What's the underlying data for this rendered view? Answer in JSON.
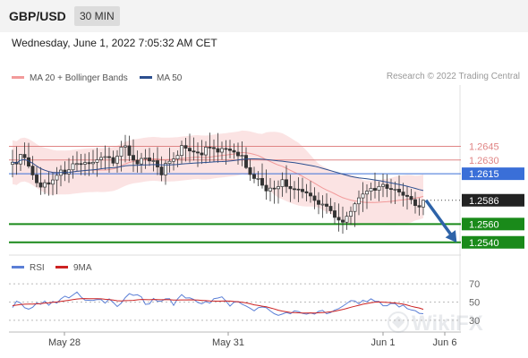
{
  "header": {
    "pair": "GBP/USD",
    "timeframe": "30 MIN",
    "datetime": "Wednesday, June 1, 2022 7:05:32 AM CET",
    "credit": "Research © 2022 Trading Central"
  },
  "colors": {
    "bollinger": "#f29a9a",
    "ma50": "#2c4f8f",
    "resistance": "#e08585",
    "pivot": "#3a6fd8",
    "support": "#1a8a1a",
    "arrow": "#2e63a8",
    "rsi": "#5b7fd6",
    "rsi_ma": "#cc2222"
  },
  "chart_data": [
    {
      "type": "candlestick",
      "title": "",
      "legend": [
        "MA 20 + Bollinger Bands",
        "MA 50"
      ],
      "legend_placement": "top-left",
      "x_ticks": [
        "May 28",
        "May 31",
        "Jun 1",
        "Jun 6"
      ],
      "current_price": 1.2586,
      "levels": [
        {
          "label": "1.2645",
          "value": 1.2645,
          "kind": "resistance"
        },
        {
          "label": "1.2630",
          "value": 1.263,
          "kind": "resistance"
        },
        {
          "label": "1.2615",
          "value": 1.2615,
          "kind": "pivot"
        },
        {
          "label": "1.2586",
          "value": 1.2586,
          "kind": "last"
        },
        {
          "label": "1.2560",
          "value": 1.256,
          "kind": "support"
        },
        {
          "label": "1.2540",
          "value": 1.254,
          "kind": "support"
        }
      ],
      "forecast": {
        "from": 1.2586,
        "to": 1.254,
        "direction": "down"
      },
      "candles": [
        [
          1.26253,
          1.26412,
          1.26111,
          1.26276
        ],
        [
          1.26276,
          1.26447,
          1.26139,
          1.26257
        ],
        [
          1.26257,
          1.26366,
          1.26181,
          1.26361
        ],
        [
          1.26361,
          1.26493,
          1.26243,
          1.26325
        ],
        [
          1.26325,
          1.26488,
          1.26209,
          1.26233
        ],
        [
          1.26233,
          1.26344,
          1.26083,
          1.26137
        ],
        [
          1.26137,
          1.26227,
          1.26003,
          1.26051
        ],
        [
          1.26051,
          1.26222,
          1.25919,
          1.26004
        ],
        [
          1.26004,
          1.26088,
          1.25925,
          1.26052
        ],
        [
          1.26052,
          1.26173,
          1.2591,
          1.26036
        ],
        [
          1.26036,
          1.26162,
          1.25914,
          1.26082
        ],
        [
          1.26082,
          1.26222,
          1.25926,
          1.26133
        ],
        [
          1.26133,
          1.26243,
          1.26013,
          1.2619
        ],
        [
          1.2619,
          1.26286,
          1.2607,
          1.26148
        ],
        [
          1.26148,
          1.26321,
          1.26051,
          1.26193
        ],
        [
          1.26193,
          1.26348,
          1.26096,
          1.26259
        ],
        [
          1.26259,
          1.26393,
          1.26181,
          1.26261
        ],
        [
          1.26261,
          1.26366,
          1.26135,
          1.26255
        ],
        [
          1.26255,
          1.2637,
          1.26129,
          1.26272
        ],
        [
          1.26272,
          1.26385,
          1.26126,
          1.2626
        ],
        [
          1.2626,
          1.26411,
          1.26155,
          1.26275
        ],
        [
          1.26275,
          1.26434,
          1.26117,
          1.26303
        ],
        [
          1.26303,
          1.26386,
          1.26202,
          1.26328
        ],
        [
          1.26328,
          1.26458,
          1.26194,
          1.26337
        ],
        [
          1.26337,
          1.26439,
          1.26161,
          1.26327
        ],
        [
          1.26327,
          1.26403,
          1.26232,
          1.26266
        ],
        [
          1.26266,
          1.26407,
          1.26162,
          1.26341
        ],
        [
          1.26341,
          1.26509,
          1.26174,
          1.26442
        ],
        [
          1.26442,
          1.26574,
          1.26274,
          1.26455
        ],
        [
          1.26455,
          1.26566,
          1.26287,
          1.26351
        ],
        [
          1.26351,
          1.26525,
          1.2617,
          1.26298
        ],
        [
          1.26298,
          1.26405,
          1.26162,
          1.26257
        ],
        [
          1.26257,
          1.26378,
          1.2616,
          1.26317
        ],
        [
          1.26317,
          1.26419,
          1.26202,
          1.26323
        ],
        [
          1.26323,
          1.26433,
          1.26236,
          1.2629
        ],
        [
          1.2629,
          1.26379,
          1.26176,
          1.26293
        ],
        [
          1.26293,
          1.26441,
          1.26135,
          1.26224
        ],
        [
          1.26224,
          1.26339,
          1.26068,
          1.26137
        ],
        [
          1.26137,
          1.26298,
          1.26029,
          1.26262
        ],
        [
          1.26262,
          1.26434,
          1.26163,
          1.26286
        ],
        [
          1.26286,
          1.26385,
          1.26186,
          1.26311
        ],
        [
          1.26311,
          1.26405,
          1.26221,
          1.2635
        ],
        [
          1.2635,
          1.26512,
          1.26261,
          1.26458
        ],
        [
          1.26458,
          1.26543,
          1.26284,
          1.26429
        ],
        [
          1.26429,
          1.26588,
          1.26271,
          1.26399
        ],
        [
          1.26399,
          1.26546,
          1.26294,
          1.26388
        ],
        [
          1.26388,
          1.26493,
          1.26223,
          1.26377
        ],
        [
          1.26377,
          1.26519,
          1.26258,
          1.26356
        ],
        [
          1.26356,
          1.26506,
          1.26264,
          1.26441
        ],
        [
          1.26441,
          1.26599,
          1.26275,
          1.26436
        ],
        [
          1.26436,
          1.26524,
          1.26279,
          1.26425
        ],
        [
          1.26425,
          1.26595,
          1.26271,
          1.26386
        ],
        [
          1.26386,
          1.26501,
          1.26303,
          1.26426
        ],
        [
          1.26426,
          1.26517,
          1.26249,
          1.26421
        ],
        [
          1.26421,
          1.2652,
          1.26319,
          1.26404
        ],
        [
          1.26404,
          1.2648,
          1.26313,
          1.26386
        ],
        [
          1.26386,
          1.2649,
          1.26249,
          1.26346
        ],
        [
          1.26346,
          1.26504,
          1.26232,
          1.26351
        ],
        [
          1.26351,
          1.2644,
          1.262,
          1.26217
        ],
        [
          1.26217,
          1.26305,
          1.26073,
          1.26142
        ],
        [
          1.26142,
          1.26226,
          1.26046,
          1.26098
        ],
        [
          1.26098,
          1.26179,
          1.26014,
          1.26099
        ],
        [
          1.26099,
          1.26263,
          1.25989,
          1.26024
        ],
        [
          1.26024,
          1.26196,
          1.25866,
          1.25962
        ],
        [
          1.25962,
          1.26102,
          1.25848,
          1.25993
        ],
        [
          1.25993,
          1.26075,
          1.25822,
          1.25986
        ],
        [
          1.25986,
          1.26077,
          1.25823,
          1.26009
        ],
        [
          1.26009,
          1.26165,
          1.25898,
          1.26085
        ],
        [
          1.26085,
          1.26243,
          1.25939,
          1.26011
        ],
        [
          1.26011,
          1.2614,
          1.2584,
          1.25986
        ],
        [
          1.25986,
          1.26071,
          1.25873,
          1.25982
        ],
        [
          1.25982,
          1.26111,
          1.25839,
          1.2598
        ],
        [
          1.2598,
          1.26106,
          1.25882,
          1.25954
        ],
        [
          1.25954,
          1.26037,
          1.25848,
          1.25939
        ],
        [
          1.25939,
          1.2607,
          1.25833,
          1.25907
        ],
        [
          1.25907,
          1.26002,
          1.25762,
          1.25858
        ],
        [
          1.25858,
          1.25948,
          1.25708,
          1.25815
        ],
        [
          1.25815,
          1.25915,
          1.25667,
          1.25818
        ],
        [
          1.25818,
          1.25936,
          1.25713,
          1.25794
        ],
        [
          1.25794,
          1.25884,
          1.2571,
          1.25745
        ],
        [
          1.25745,
          1.25838,
          1.25603,
          1.25673
        ],
        [
          1.25673,
          1.25825,
          1.25518,
          1.25643
        ],
        [
          1.25643,
          1.2579,
          1.25494,
          1.2562
        ],
        [
          1.2562,
          1.25734,
          1.25536,
          1.25685
        ],
        [
          1.25685,
          1.25792,
          1.25591,
          1.25738
        ],
        [
          1.25738,
          1.25841,
          1.25568,
          1.25821
        ],
        [
          1.25821,
          1.25966,
          1.25697,
          1.25886
        ],
        [
          1.25886,
          1.26058,
          1.25732,
          1.25928
        ],
        [
          1.25928,
          1.26034,
          1.25765,
          1.25959
        ],
        [
          1.25959,
          1.26053,
          1.25857,
          1.2599
        ],
        [
          1.2599,
          1.26162,
          1.2588,
          1.25969
        ],
        [
          1.25969,
          1.26065,
          1.25849,
          1.26011
        ],
        [
          1.26011,
          1.26151,
          1.25895,
          1.26033
        ],
        [
          1.26033,
          1.26144,
          1.25894,
          1.25989
        ],
        [
          1.25989,
          1.26095,
          1.25825,
          1.25978
        ],
        [
          1.25978,
          1.26064,
          1.25818,
          1.25981
        ],
        [
          1.25981,
          1.26133,
          1.25904,
          1.2595
        ],
        [
          1.2595,
          1.2605,
          1.25791,
          1.25914
        ],
        [
          1.25914,
          1.26013,
          1.25759,
          1.25902
        ],
        [
          1.25902,
          1.25985,
          1.25816,
          1.25867
        ],
        [
          1.25867,
          1.25952,
          1.25715,
          1.25802
        ],
        [
          1.25802,
          1.25883,
          1.25693,
          1.25786
        ],
        [
          1.25786,
          1.25867,
          1.25697,
          1.2586
        ]
      ]
    },
    {
      "type": "line",
      "title": "",
      "legend": [
        "RSI",
        "9MA"
      ],
      "legend_placement": "top-left",
      "ylim": [
        20,
        80
      ],
      "y_ticks": [
        70,
        50,
        30
      ],
      "rsi": [
        44.0,
        51.0,
        48.9,
        43.8,
        42.2,
        44.3,
        48.9,
        47.6,
        51.1,
        46.5,
        50.7,
        48.8,
        53.4,
        56.5,
        54.6,
        57.8,
        61.0,
        55.7,
        52.1,
        52.0,
        51.8,
        52.9,
        52.7,
        48.8,
        53.4,
        49.6,
        45.1,
        48.7,
        54.9,
        59.2,
        57.4,
        58.1,
        55.7,
        47.4,
        48.0,
        54.0,
        50.9,
        51.1,
        53.5,
        53.6,
        46.4,
        53.5,
        58.2,
        54.4,
        54.6,
        52.9,
        49.6,
        48.0,
        50.7,
        48.8,
        53.7,
        54.4,
        55.7,
        51.1,
        45.6,
        49.8,
        50.5,
        47.6,
        45.7,
        43.2,
        40.4,
        43.8,
        44.6,
        43.9,
        40.3,
        37.2,
        35.4,
        36.8,
        38.5,
        37.1,
        40.4,
        39.6,
        37.5,
        36.7,
        38.0,
        36.8,
        39.8,
        40.9,
        37.1,
        38.5,
        41.2,
        42.8,
        45.5,
        48.5,
        51.6,
        51.3,
        48.0,
        52.1,
        50.3,
        53.5,
        50.9,
        50.6,
        46.0,
        46.0,
        48.5,
        48.2,
        44.6,
        46.8,
        42.8,
        41.3,
        40.6,
        37.6,
        37.2
      ],
      "ma9": [
        46.1,
        46.7,
        47.2,
        47.6,
        47.8,
        47.8,
        48.0,
        48.3,
        48.9,
        49.1,
        49.7,
        50.1,
        50.8,
        51.4,
        52.0,
        52.7,
        53.3,
        53.6,
        53.8,
        53.7,
        53.7,
        53.6,
        53.5,
        53.0,
        52.8,
        52.2,
        51.5,
        51.3,
        51.6,
        51.7,
        51.9,
        52.5,
        52.9,
        52.8,
        52.6,
        52.9,
        52.8,
        52.6,
        52.8,
        52.6,
        52.2,
        52.2,
        52.4,
        52.4,
        52.5,
        52.4,
        52.2,
        51.9,
        51.6,
        51.2,
        51.1,
        51.0,
        51.1,
        51.2,
        51.1,
        50.6,
        50.4,
        49.8,
        49.1,
        48.1,
        47.0,
        46.3,
        45.5,
        44.8,
        43.6,
        42.4,
        41.0,
        40.1,
        39.3,
        38.6,
        38.5,
        38.2,
        38.0,
        37.9,
        38.1,
        38.0,
        38.2,
        38.5,
        38.8,
        39.3,
        40.0,
        40.9,
        41.8,
        43.0,
        44.3,
        45.4,
        46.5,
        47.6,
        48.4,
        49.3,
        49.9,
        50.1,
        49.9,
        49.6,
        49.3,
        49.0,
        48.3,
        47.7,
        46.7,
        45.4,
        44.4,
        43.5,
        42.0
      ]
    }
  ]
}
